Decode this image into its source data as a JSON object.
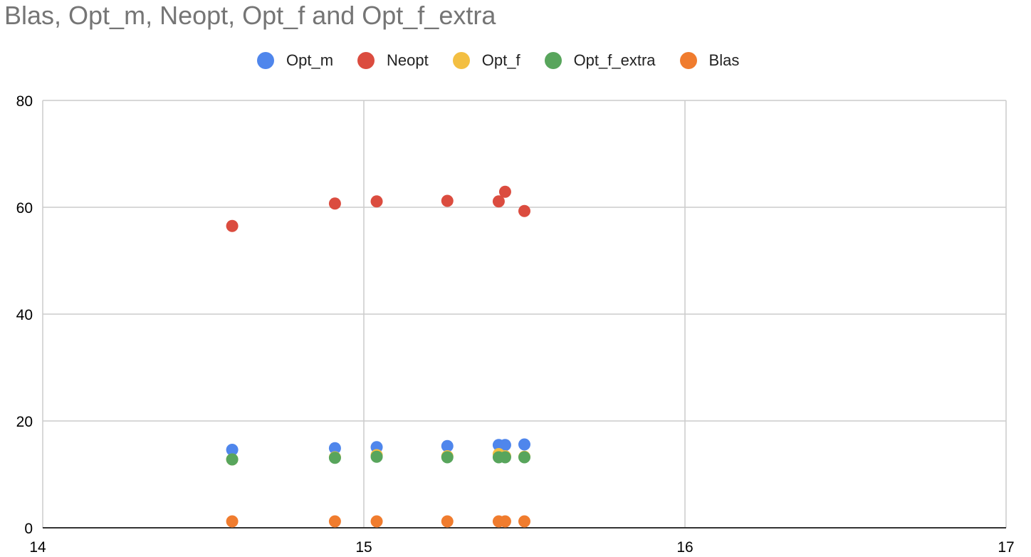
{
  "chart_data": {
    "type": "scatter",
    "title": "Blas, Opt_m, Neopt, Opt_f and Opt_f_extra",
    "xlabel": "",
    "ylabel": "",
    "xlim": [
      14,
      17
    ],
    "ylim": [
      0,
      80
    ],
    "x_ticks": [
      "14",
      "15",
      "16",
      "17"
    ],
    "y_ticks": [
      "0",
      "20",
      "40",
      "60",
      "80"
    ],
    "grid": true,
    "legend_position": "top",
    "series": [
      {
        "name": "Opt_m",
        "color": "#4f86ec",
        "points": [
          [
            14.59,
            14.6
          ],
          [
            14.91,
            14.9
          ],
          [
            15.04,
            15.1
          ],
          [
            15.26,
            15.3
          ],
          [
            15.42,
            15.5
          ],
          [
            15.44,
            15.5
          ],
          [
            15.5,
            15.6
          ]
        ]
      },
      {
        "name": "Neopt",
        "color": "#db4c3f",
        "points": [
          [
            14.59,
            56.5
          ],
          [
            14.91,
            60.7
          ],
          [
            15.04,
            61.1
          ],
          [
            15.26,
            61.2
          ],
          [
            15.42,
            61.1
          ],
          [
            15.44,
            62.9
          ],
          [
            15.5,
            59.3
          ]
        ]
      },
      {
        "name": "Opt_f",
        "color": "#f3bf42",
        "points": [
          [
            14.59,
            12.8
          ],
          [
            14.91,
            13.2
          ],
          [
            15.04,
            13.6
          ],
          [
            15.26,
            13.4
          ],
          [
            15.42,
            13.8
          ],
          [
            15.44,
            13.4
          ],
          [
            15.5,
            13.3
          ]
        ]
      },
      {
        "name": "Opt_f_extra",
        "color": "#58a55c",
        "points": [
          [
            14.59,
            12.8
          ],
          [
            14.91,
            13.1
          ],
          [
            15.04,
            13.3
          ],
          [
            15.26,
            13.2
          ],
          [
            15.42,
            13.2
          ],
          [
            15.44,
            13.2
          ],
          [
            15.5,
            13.2
          ]
        ]
      },
      {
        "name": "Blas",
        "color": "#f07c2e",
        "points": [
          [
            14.59,
            1.2
          ],
          [
            14.91,
            1.2
          ],
          [
            15.04,
            1.2
          ],
          [
            15.26,
            1.2
          ],
          [
            15.42,
            1.2
          ],
          [
            15.44,
            1.2
          ],
          [
            15.5,
            1.2
          ]
        ]
      }
    ],
    "legend_order": [
      0,
      1,
      2,
      3,
      4
    ]
  }
}
